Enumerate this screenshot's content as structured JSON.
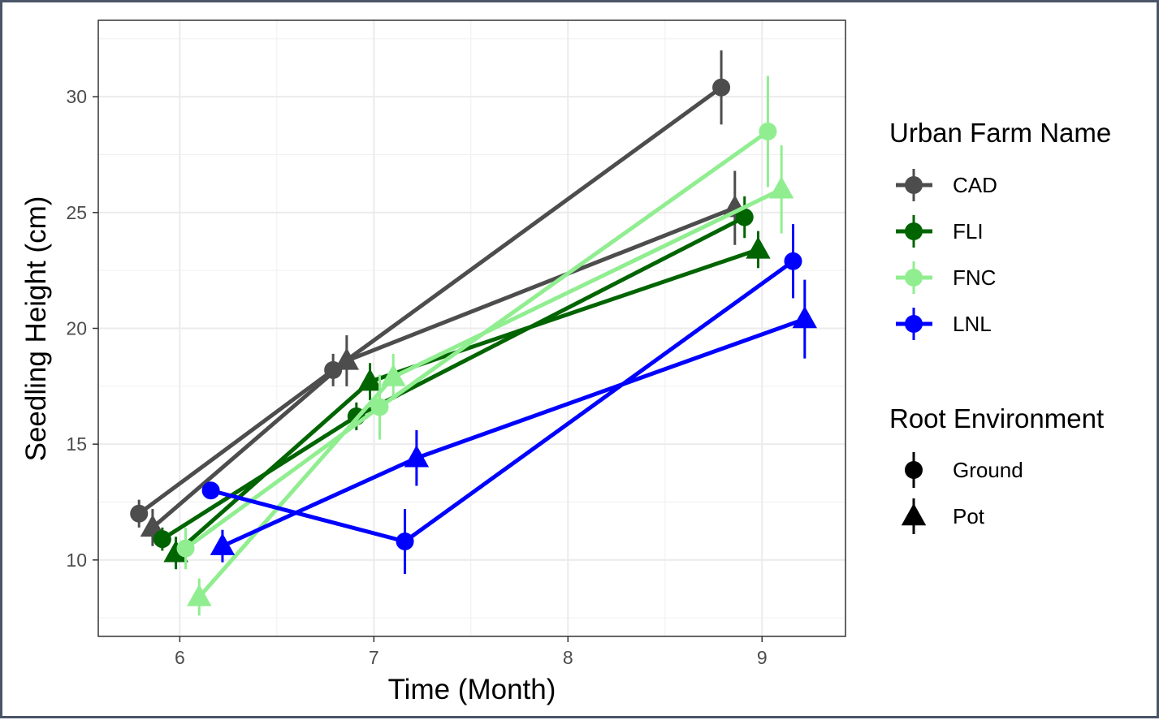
{
  "chart_data": {
    "type": "line",
    "xlabel": "Time (Month)",
    "ylabel": "Seedling Height (cm)",
    "xlim": [
      5.58,
      9.43
    ],
    "ylim": [
      6.7,
      33.3
    ],
    "x_ticks": [
      6,
      7,
      8,
      9
    ],
    "y_ticks": [
      10,
      15,
      20,
      25,
      30
    ],
    "x_tick_labels": [
      "6",
      "7",
      "8",
      "9"
    ],
    "y_tick_labels": [
      "10",
      "15",
      "20",
      "25",
      "30"
    ],
    "grid": true,
    "legend_placement": "right",
    "legend_color": {
      "title": "Urban Farm Name",
      "entries": [
        {
          "label": "CAD",
          "color": "#4d4d4d"
        },
        {
          "label": "FLI",
          "color": "#006400"
        },
        {
          "label": "FNC",
          "color": "#90ee90"
        },
        {
          "label": "LNL",
          "color": "#0000ff"
        }
      ]
    },
    "legend_shape": {
      "title": "Root Environment",
      "entries": [
        {
          "label": "Ground",
          "shape": "circle"
        },
        {
          "label": "Pot",
          "shape": "triangle"
        }
      ]
    },
    "series": [
      {
        "farm": "CAD",
        "env": "Ground",
        "color": "#4d4d4d",
        "shape": "circle",
        "points": [
          {
            "x": 5.79,
            "y": 12.0,
            "err": 0.6
          },
          {
            "x": 6.79,
            "y": 18.2,
            "err": 0.7
          },
          {
            "x": 8.79,
            "y": 30.4,
            "err": 1.6
          }
        ]
      },
      {
        "farm": "CAD",
        "env": "Pot",
        "color": "#4d4d4d",
        "shape": "triangle",
        "points": [
          {
            "x": 5.86,
            "y": 11.4,
            "err": 0.8
          },
          {
            "x": 6.86,
            "y": 18.6,
            "err": 1.1
          },
          {
            "x": 8.86,
            "y": 25.2,
            "err": 1.6
          }
        ]
      },
      {
        "farm": "FLI",
        "env": "Ground",
        "color": "#006400",
        "shape": "circle",
        "points": [
          {
            "x": 5.91,
            "y": 10.9,
            "err": 0.5
          },
          {
            "x": 6.91,
            "y": 16.2,
            "err": 0.6
          },
          {
            "x": 8.91,
            "y": 24.8,
            "err": 0.9
          }
        ]
      },
      {
        "farm": "FLI",
        "env": "Pot",
        "color": "#006400",
        "shape": "triangle",
        "points": [
          {
            "x": 5.98,
            "y": 10.3,
            "err": 0.7
          },
          {
            "x": 6.98,
            "y": 17.7,
            "err": 0.8
          },
          {
            "x": 8.98,
            "y": 23.4,
            "err": 0.8
          }
        ]
      },
      {
        "farm": "FNC",
        "env": "Ground",
        "color": "#90ee90",
        "shape": "circle",
        "points": [
          {
            "x": 6.03,
            "y": 10.5,
            "err": 0.9
          },
          {
            "x": 7.03,
            "y": 16.6,
            "err": 1.4
          },
          {
            "x": 9.03,
            "y": 28.5,
            "err": 2.4
          }
        ]
      },
      {
        "farm": "FNC",
        "env": "Pot",
        "color": "#90ee90",
        "shape": "triangle",
        "points": [
          {
            "x": 6.1,
            "y": 8.4,
            "err": 0.8
          },
          {
            "x": 7.1,
            "y": 17.9,
            "err": 1.0
          },
          {
            "x": 9.1,
            "y": 26.0,
            "err": 1.9
          }
        ]
      },
      {
        "farm": "LNL",
        "env": "Ground",
        "color": "#0000ff",
        "shape": "circle",
        "points": [
          {
            "x": 6.16,
            "y": 13.0,
            "err": 0.3
          },
          {
            "x": 7.16,
            "y": 10.8,
            "err": 1.4
          },
          {
            "x": 9.16,
            "y": 22.9,
            "err": 1.6
          }
        ]
      },
      {
        "farm": "LNL",
        "env": "Pot",
        "color": "#0000ff",
        "shape": "triangle",
        "points": [
          {
            "x": 6.22,
            "y": 10.6,
            "err": 0.7
          },
          {
            "x": 7.22,
            "y": 14.4,
            "err": 1.2
          },
          {
            "x": 9.22,
            "y": 20.4,
            "err": 1.7
          }
        ]
      }
    ]
  }
}
